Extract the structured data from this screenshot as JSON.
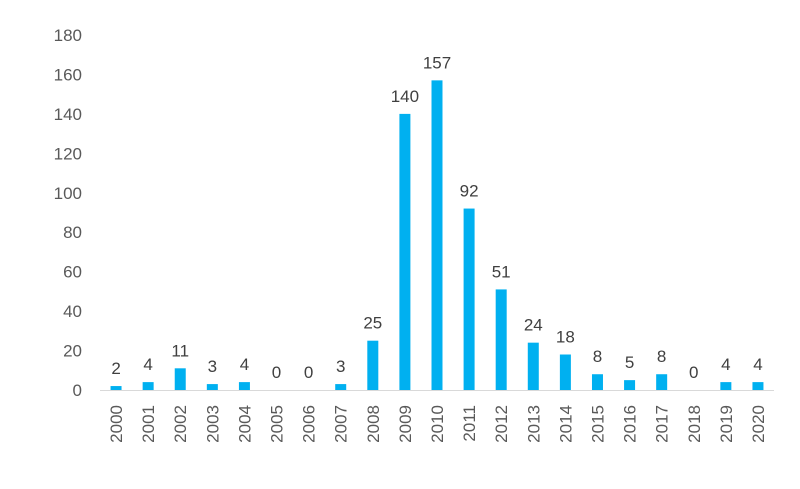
{
  "chart_data": {
    "type": "bar",
    "categories": [
      "2000",
      "2001",
      "2002",
      "2003",
      "2004",
      "2005",
      "2006",
      "2007",
      "2008",
      "2009",
      "2010",
      "2011",
      "2012",
      "2013",
      "2014",
      "2015",
      "2016",
      "2017",
      "2018",
      "2019",
      "2020"
    ],
    "values": [
      2,
      4,
      11,
      3,
      4,
      0,
      0,
      3,
      25,
      140,
      157,
      92,
      51,
      24,
      18,
      8,
      5,
      8,
      0,
      4,
      4
    ],
    "data_labels": [
      "2",
      "4",
      "11",
      "3",
      "4",
      "0",
      "0",
      "3",
      "25",
      "140",
      "157",
      "92",
      "51",
      "24",
      "18",
      "8",
      "5",
      "8",
      "0",
      "4",
      "4"
    ],
    "ylim": [
      0,
      180
    ],
    "y_ticks": [
      "0",
      "20",
      "40",
      "60",
      "80",
      "100",
      "120",
      "140",
      "160",
      "180"
    ],
    "grid": false,
    "legend": "none",
    "bar_color": "#00b0f0"
  }
}
